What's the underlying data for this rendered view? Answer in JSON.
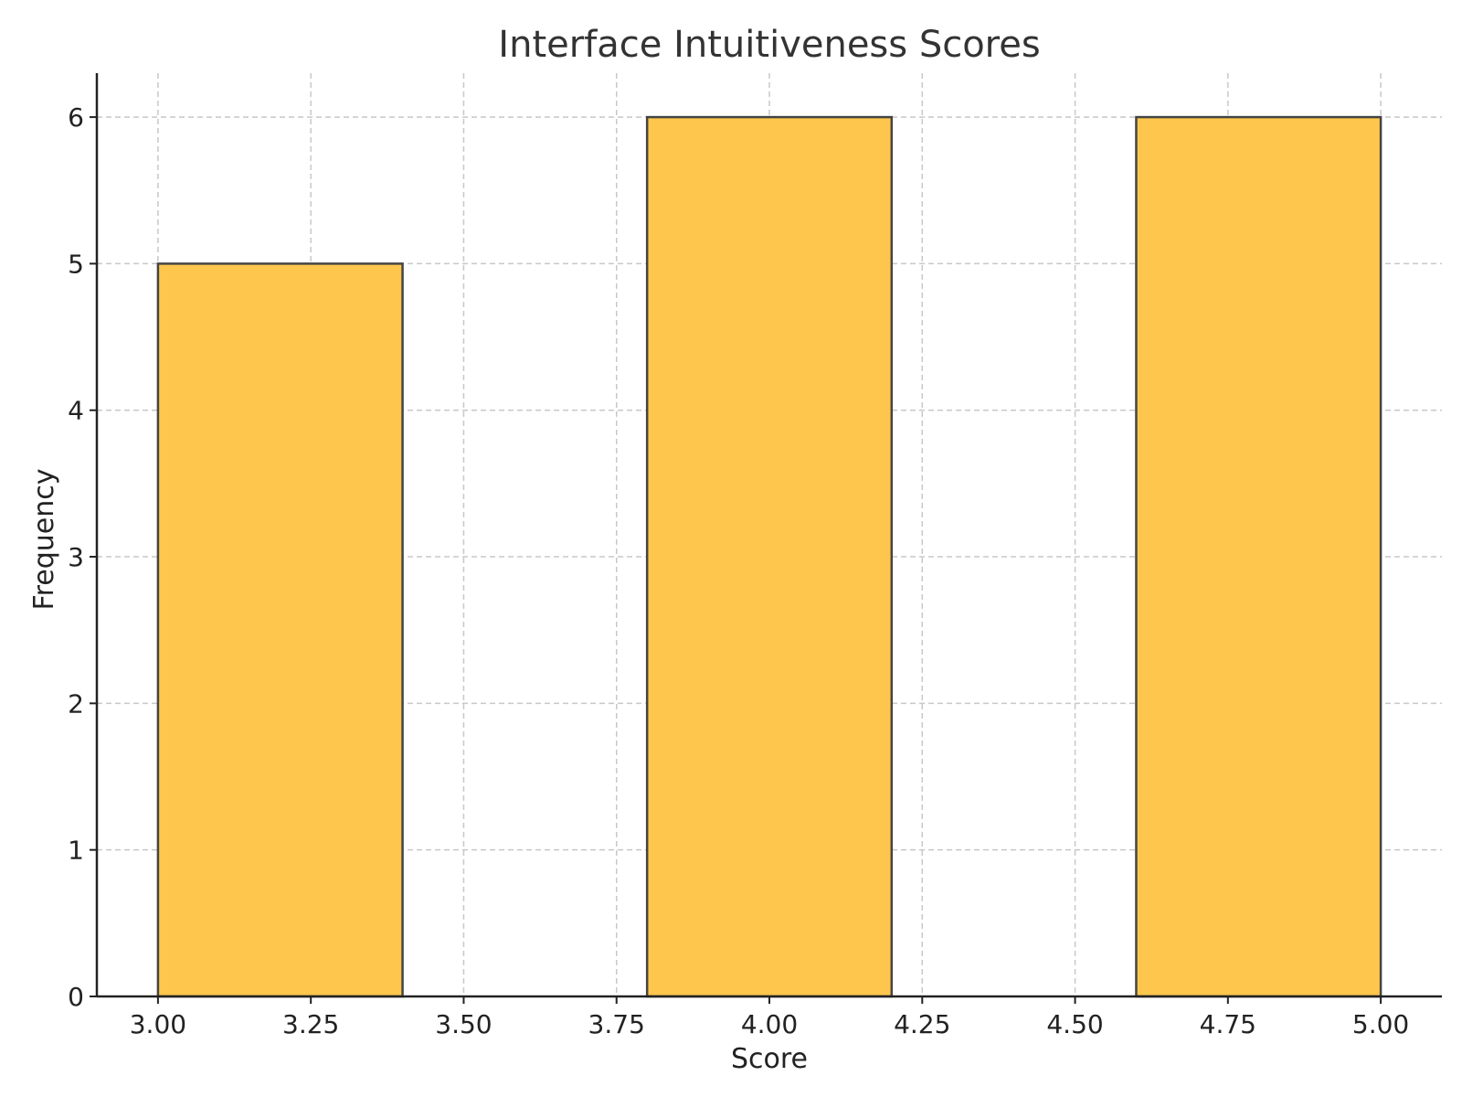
{
  "chart_data": {
    "type": "bar",
    "title": "Interface Intuitiveness Scores",
    "xlabel": "Score",
    "ylabel": "Frequency",
    "bins": [
      {
        "x0": 3.0,
        "x1": 3.4,
        "count": 5
      },
      {
        "x0": 3.4,
        "x1": 3.8,
        "count": 0
      },
      {
        "x0": 3.8,
        "x1": 4.2,
        "count": 6
      },
      {
        "x0": 4.2,
        "x1": 4.6,
        "count": 0
      },
      {
        "x0": 4.6,
        "x1": 5.0,
        "count": 6
      }
    ],
    "xlim": [
      2.9,
      5.1
    ],
    "ylim": [
      0,
      6.3
    ],
    "xticks": [
      3.0,
      3.25,
      3.5,
      3.75,
      4.0,
      4.25,
      4.5,
      4.75,
      5.0
    ],
    "xtick_labels": [
      "3.00",
      "3.25",
      "3.50",
      "3.75",
      "4.00",
      "4.25",
      "4.50",
      "4.75",
      "5.00"
    ],
    "yticks": [
      0,
      1,
      2,
      3,
      4,
      5,
      6
    ],
    "ytick_labels": [
      "0",
      "1",
      "2",
      "3",
      "4",
      "5",
      "6"
    ],
    "grid": true,
    "bar_color": "#FFC64D",
    "edge_color": "#444444"
  }
}
